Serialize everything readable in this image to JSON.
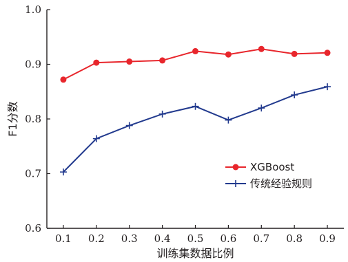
{
  "chart_data": {
    "type": "line",
    "title": "",
    "xlabel": "训练集数据比例",
    "ylabel": "F1分数",
    "x": [
      0.1,
      0.2,
      0.3,
      0.4,
      0.5,
      0.6,
      0.7,
      0.8,
      0.9
    ],
    "x_tick_labels": [
      "0.1",
      "0.2",
      "0.3",
      "0.4",
      "0.5",
      "0.6",
      "0.7",
      "0.8",
      "0.9"
    ],
    "xlim": [
      0.05,
      0.95
    ],
    "ylim": [
      0.6,
      1.0
    ],
    "y_ticks": [
      0.6,
      0.7,
      0.8,
      0.9,
      1.0
    ],
    "y_tick_labels": [
      "0.6",
      "0.7",
      "0.8",
      "0.9",
      "1.0"
    ],
    "grid": false,
    "legend_position": "lower-right",
    "series": [
      {
        "name": "XGBoost",
        "color": "#e8262c",
        "marker": "circle",
        "values": [
          0.872,
          0.903,
          0.905,
          0.907,
          0.924,
          0.918,
          0.928,
          0.919,
          0.921
        ]
      },
      {
        "name": "传统经验规则",
        "color": "#223a8e",
        "marker": "plus",
        "values": [
          0.703,
          0.764,
          0.788,
          0.809,
          0.823,
          0.798,
          0.82,
          0.844,
          0.859
        ]
      }
    ]
  }
}
